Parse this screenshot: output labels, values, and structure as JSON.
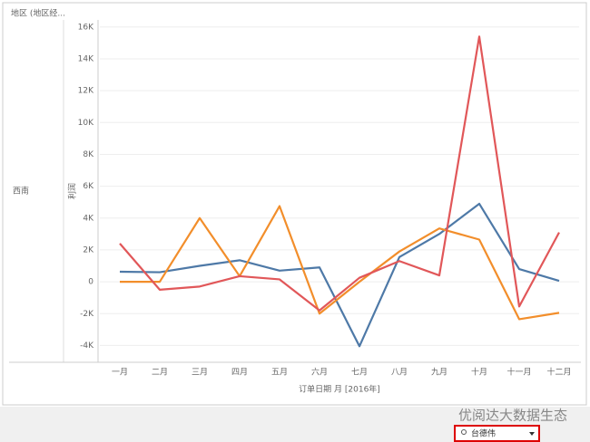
{
  "header": {
    "column_label": "地区 (地区经...",
    "row_label": "西南"
  },
  "chart_data": {
    "type": "line",
    "y_label": "利润",
    "x_label": "订单日期 月 [2016年]",
    "categories": [
      "一月",
      "二月",
      "三月",
      "四月",
      "五月",
      "六月",
      "七月",
      "八月",
      "九月",
      "十月",
      "十一月",
      "十二月"
    ],
    "series": [
      {
        "color": "#4e79a7",
        "values": [
          630,
          600,
          1000,
          1350,
          700,
          900,
          -4050,
          1550,
          3000,
          4900,
          800,
          60
        ]
      },
      {
        "color": "#f28e2b",
        "values": [
          0,
          0,
          4000,
          350,
          4750,
          -2000,
          0,
          1900,
          3350,
          2650,
          -2350,
          -1950
        ]
      },
      {
        "color": "#e15759",
        "values": [
          2400,
          -500,
          -300,
          350,
          150,
          -1800,
          250,
          1300,
          400,
          15400,
          -1550,
          3100
        ]
      }
    ],
    "ylim": [
      -5000,
      16500
    ],
    "yticks": [
      {
        "value": -4000,
        "label": "-4K"
      },
      {
        "value": -2000,
        "label": "-2K"
      },
      0,
      {
        "value": 2000,
        "label": "2K"
      },
      {
        "value": 4000,
        "label": "4K"
      },
      {
        "value": 6000,
        "label": "6K"
      },
      {
        "value": 8000,
        "label": "8K"
      },
      {
        "value": 10000,
        "label": "10K"
      },
      {
        "value": 12000,
        "label": "12K"
      },
      {
        "value": 14000,
        "label": "14K"
      },
      {
        "value": 16000,
        "label": "16K"
      }
    ],
    "grid": true
  },
  "footer": {
    "watermark": "优阅达大数据生态",
    "user": "台德伟"
  }
}
